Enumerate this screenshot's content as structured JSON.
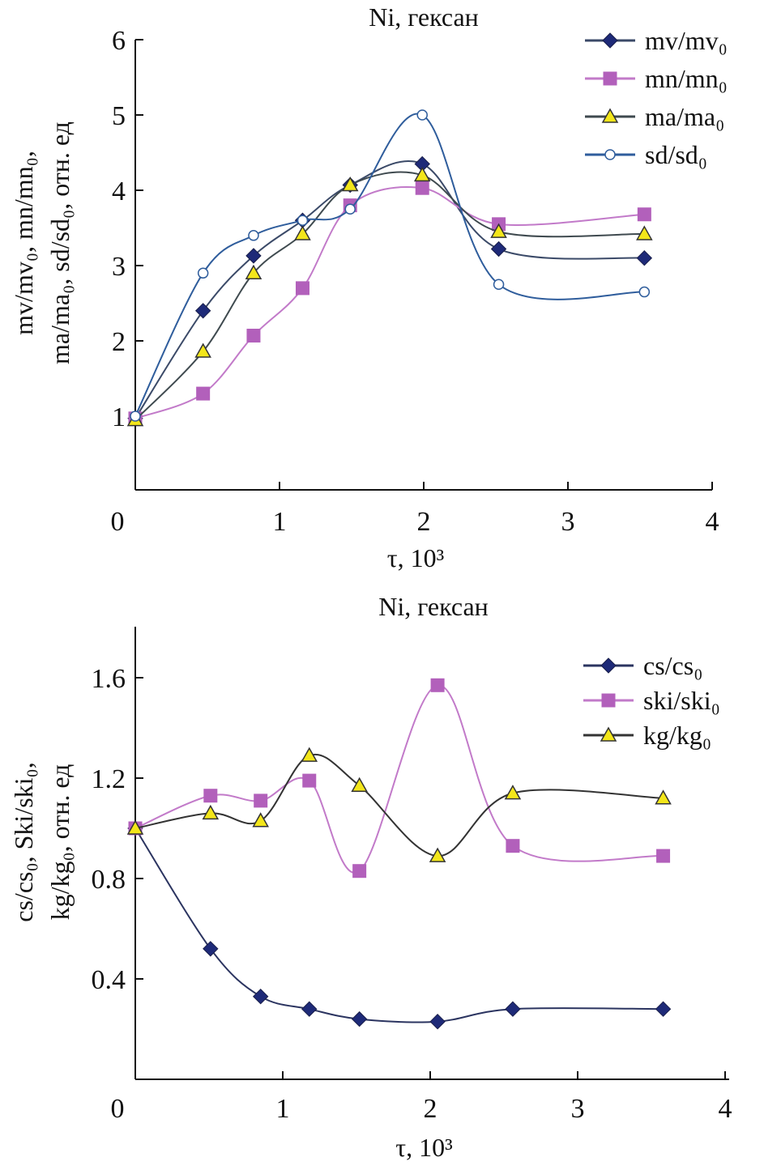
{
  "chart_data": [
    {
      "type": "line",
      "title": "Ni, гексан",
      "xlabel": "τ, 10³",
      "ylabel": [
        "mv/mv₀, mn/mn₀,",
        "ma/ma₀, sd/sd₀, отн. ед"
      ],
      "xlim": [
        0,
        4
      ],
      "ylim": [
        0,
        6
      ],
      "xticks": [
        "0",
        "1",
        "2",
        "3",
        "4"
      ],
      "yticks": [
        "1",
        "2",
        "3",
        "4",
        "5",
        "6"
      ],
      "grid": false,
      "legend": "top-right",
      "smooth": true,
      "x": [
        0,
        0.47,
        0.82,
        1.16,
        1.49,
        1.99,
        2.52,
        3.53
      ],
      "series": [
        {
          "name": "mv/mv₀",
          "marker": "diamond",
          "line_color": "#3b4a68",
          "marker_color": "#1e2a78",
          "values": [
            0.97,
            2.4,
            3.13,
            3.6,
            4.07,
            4.35,
            3.22,
            3.1
          ]
        },
        {
          "name": "mn/mn₀",
          "marker": "square",
          "line_color": "#c27ac9",
          "marker_color": "#b260bb",
          "values": [
            0.97,
            1.3,
            2.07,
            2.7,
            3.8,
            4.03,
            3.55,
            3.68
          ]
        },
        {
          "name": "ma/ma₀",
          "marker": "triangle",
          "line_color": "#3f4a4f",
          "marker_color": "#f3e61a",
          "values": [
            0.95,
            1.86,
            2.9,
            3.42,
            4.07,
            4.2,
            3.45,
            3.42
          ]
        },
        {
          "name": "sd/sd₀",
          "marker": "circle",
          "line_color": "#2f5d9c",
          "marker_color": "#ffffff",
          "values": [
            1.0,
            2.9,
            3.4,
            3.6,
            3.75,
            5.0,
            2.75,
            2.65
          ]
        }
      ]
    },
    {
      "type": "line",
      "title": "Ni, гексан",
      "xlabel": "τ, 10³",
      "ylabel": [
        "cs/cs₀, Ski/ski₀,",
        "kg/kg₀, отн. ед"
      ],
      "xlim": [
        0,
        4
      ],
      "ylim": [
        0,
        1.8
      ],
      "xticks": [
        "0",
        "1",
        "2",
        "3",
        "4"
      ],
      "yticks": [
        "0.4",
        "0.8",
        "1.2",
        "1.6"
      ],
      "grid": false,
      "legend": "top-right",
      "smooth": true,
      "x": [
        0,
        0.51,
        0.85,
        1.18,
        1.52,
        2.05,
        2.56,
        3.58
      ],
      "series": [
        {
          "name": "cs/cs₀",
          "marker": "diamond",
          "line_color": "#2b3460",
          "marker_color": "#1e2a78",
          "values": [
            1.0,
            0.52,
            0.33,
            0.28,
            0.24,
            0.23,
            0.28,
            0.28
          ]
        },
        {
          "name": "ski/ski₀",
          "marker": "square",
          "line_color": "#c27ac9",
          "marker_color": "#b260bb",
          "values": [
            1.0,
            1.13,
            1.11,
            1.19,
            0.83,
            1.57,
            0.93,
            0.89
          ]
        },
        {
          "name": "kg/kg₀",
          "marker": "triangle",
          "line_color": "#333333",
          "marker_color": "#f3e61a",
          "values": [
            1.0,
            1.06,
            1.03,
            1.29,
            1.17,
            0.89,
            1.14,
            1.12
          ]
        }
      ]
    }
  ]
}
